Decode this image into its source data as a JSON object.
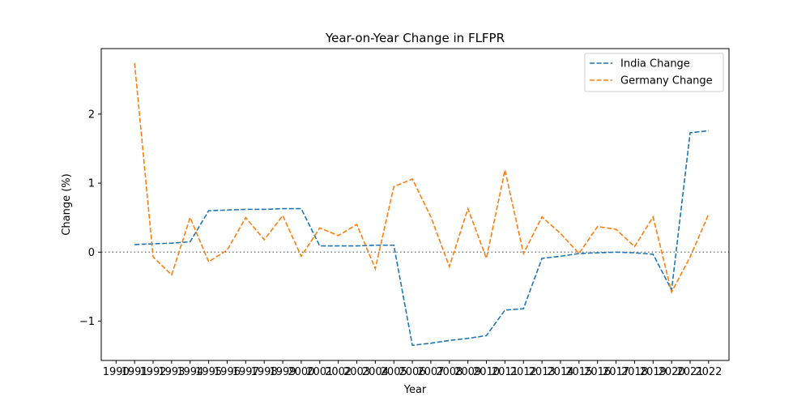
{
  "chart_data": {
    "type": "line",
    "title": "Year-on-Year Change in FLFPR",
    "xlabel": "Year",
    "ylabel": "Change (%)",
    "x_ticks": [
      "1990",
      "1991",
      "1992",
      "1993",
      "1994",
      "1995",
      "1996",
      "1997",
      "1998",
      "1999",
      "2000",
      "2001",
      "2002",
      "2003",
      "2004",
      "2005",
      "2006",
      "2007",
      "2008",
      "2009",
      "2010",
      "2011",
      "2012",
      "2013",
      "2014",
      "2015",
      "2016",
      "2017",
      "2018",
      "2019",
      "2020",
      "2021",
      "2022"
    ],
    "xlim": [
      1989.2,
      2023.1
    ],
    "ylim": [
      -1.57,
      2.95
    ],
    "y_ticks": [
      {
        "value": -1,
        "label": "−1"
      },
      {
        "value": 0,
        "label": "0"
      },
      {
        "value": 1,
        "label": "1"
      },
      {
        "value": 2,
        "label": "2"
      }
    ],
    "zero_line": true,
    "legend_position": "top-right",
    "x": [
      1991,
      1992,
      1993,
      1994,
      1995,
      1996,
      1997,
      1998,
      1999,
      2000,
      2001,
      2002,
      2003,
      2004,
      2005,
      2006,
      2007,
      2008,
      2009,
      2010,
      2011,
      2012,
      2013,
      2014,
      2015,
      2016,
      2017,
      2018,
      2019,
      2020,
      2021,
      2022
    ],
    "series": [
      {
        "name": "India Change",
        "color": "#1f77b4",
        "values": [
          0.11,
          0.12,
          0.13,
          0.15,
          0.6,
          0.61,
          0.62,
          0.62,
          0.63,
          0.63,
          0.09,
          0.09,
          0.09,
          0.1,
          0.1,
          -1.35,
          -1.32,
          -1.28,
          -1.25,
          -1.21,
          -0.84,
          -0.82,
          -0.09,
          -0.06,
          -0.02,
          -0.01,
          0.0,
          -0.01,
          -0.03,
          -0.55,
          1.73,
          1.76
        ]
      },
      {
        "name": "Germany Change",
        "color": "#ff7f0e",
        "values": [
          2.74,
          -0.07,
          -0.33,
          0.5,
          -0.14,
          0.03,
          0.5,
          0.18,
          0.53,
          -0.06,
          0.35,
          0.24,
          0.4,
          -0.24,
          0.95,
          1.06,
          0.51,
          -0.21,
          0.63,
          -0.09,
          1.19,
          -0.02,
          0.51,
          0.27,
          -0.02,
          0.37,
          0.33,
          0.08,
          0.51,
          -0.58,
          -0.07,
          0.55
        ]
      }
    ]
  }
}
